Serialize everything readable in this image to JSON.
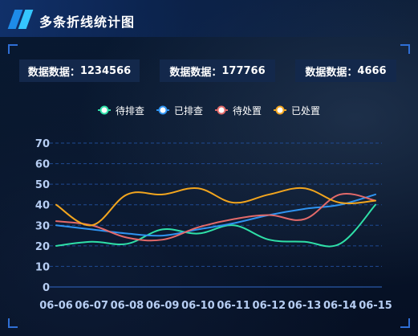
{
  "title": "多条折线统计图",
  "stats": [
    {
      "label": "数据数据：",
      "value": "1234566"
    },
    {
      "label": "数据数据：",
      "value": "177766"
    },
    {
      "label": "数据数据：",
      "value": "4666"
    }
  ],
  "colors": {
    "待排查": "#2fe0a8",
    "已排查": "#2f93f0",
    "待处置": "#e36a6a",
    "已处置": "#f2a51e"
  },
  "chart_data": {
    "type": "line",
    "smooth": true,
    "categories": [
      "06-06",
      "06-07",
      "06-08",
      "06-09",
      "06-10",
      "06-11",
      "06-12",
      "06-13",
      "06-14",
      "06-15"
    ],
    "series": [
      {
        "name": "待排查",
        "values": [
          20,
          22,
          21,
          28,
          26,
          30,
          23,
          22,
          21,
          40
        ]
      },
      {
        "name": "已排查",
        "values": [
          30,
          28,
          26,
          25,
          28,
          31,
          35,
          38,
          40,
          45
        ]
      },
      {
        "name": "待处置",
        "values": [
          32,
          30,
          24,
          23,
          29,
          33,
          35,
          33,
          45,
          42
        ]
      },
      {
        "name": "已处置",
        "values": [
          40,
          30,
          45,
          45,
          48,
          41,
          45,
          48,
          41,
          42
        ]
      }
    ],
    "ylim": [
      0,
      70
    ],
    "yticks": [
      0,
      10,
      20,
      30,
      40,
      50,
      60,
      70
    ],
    "grid": "dashed horizontal",
    "legend_position": "top-center"
  }
}
